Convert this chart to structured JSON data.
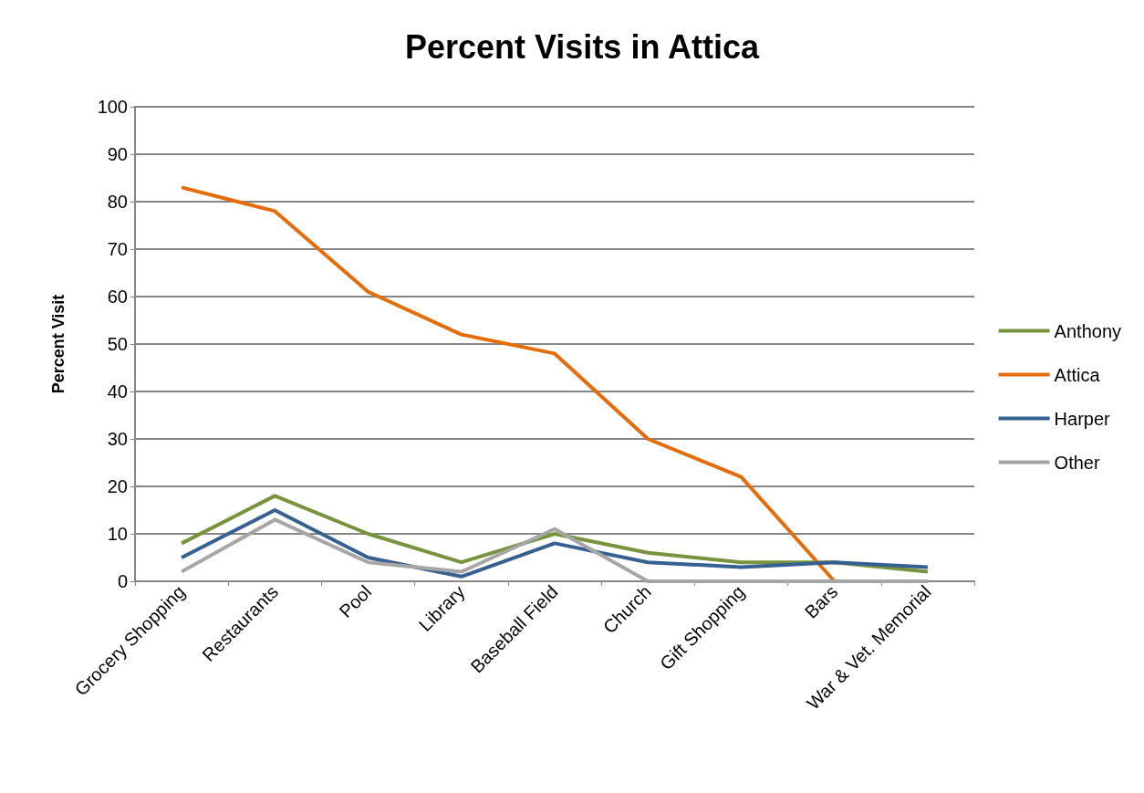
{
  "chart_data": {
    "type": "line",
    "title": "Percent Visits in Attica",
    "ylabel": "Percent Visit",
    "categories": [
      "Grocery Shopping",
      "Restaurants",
      "Pool",
      "Library",
      "Baseball Field",
      "Church",
      "Gift Shopping",
      "Bars",
      "War & Vet. Memorial"
    ],
    "series": [
      {
        "name": "Anthony",
        "color": "#77933c",
        "values": [
          8,
          18,
          10,
          4,
          10,
          6,
          4,
          4,
          2
        ]
      },
      {
        "name": "Attica",
        "color": "#e46c0a",
        "values": [
          83,
          78,
          61,
          52,
          48,
          30,
          22,
          0,
          0
        ]
      },
      {
        "name": "Harper",
        "color": "#376092",
        "values": [
          5,
          15,
          5,
          1,
          8,
          4,
          3,
          4,
          3
        ]
      },
      {
        "name": "Other",
        "color": "#a6a6a6",
        "values": [
          2,
          13,
          4,
          2,
          11,
          0,
          0,
          0,
          0
        ]
      }
    ],
    "ylim": [
      0,
      100
    ],
    "yticks": [
      0,
      10,
      20,
      30,
      40,
      50,
      60,
      70,
      80,
      90,
      100
    ],
    "grid": "y",
    "legend": "right",
    "marker": "none"
  }
}
